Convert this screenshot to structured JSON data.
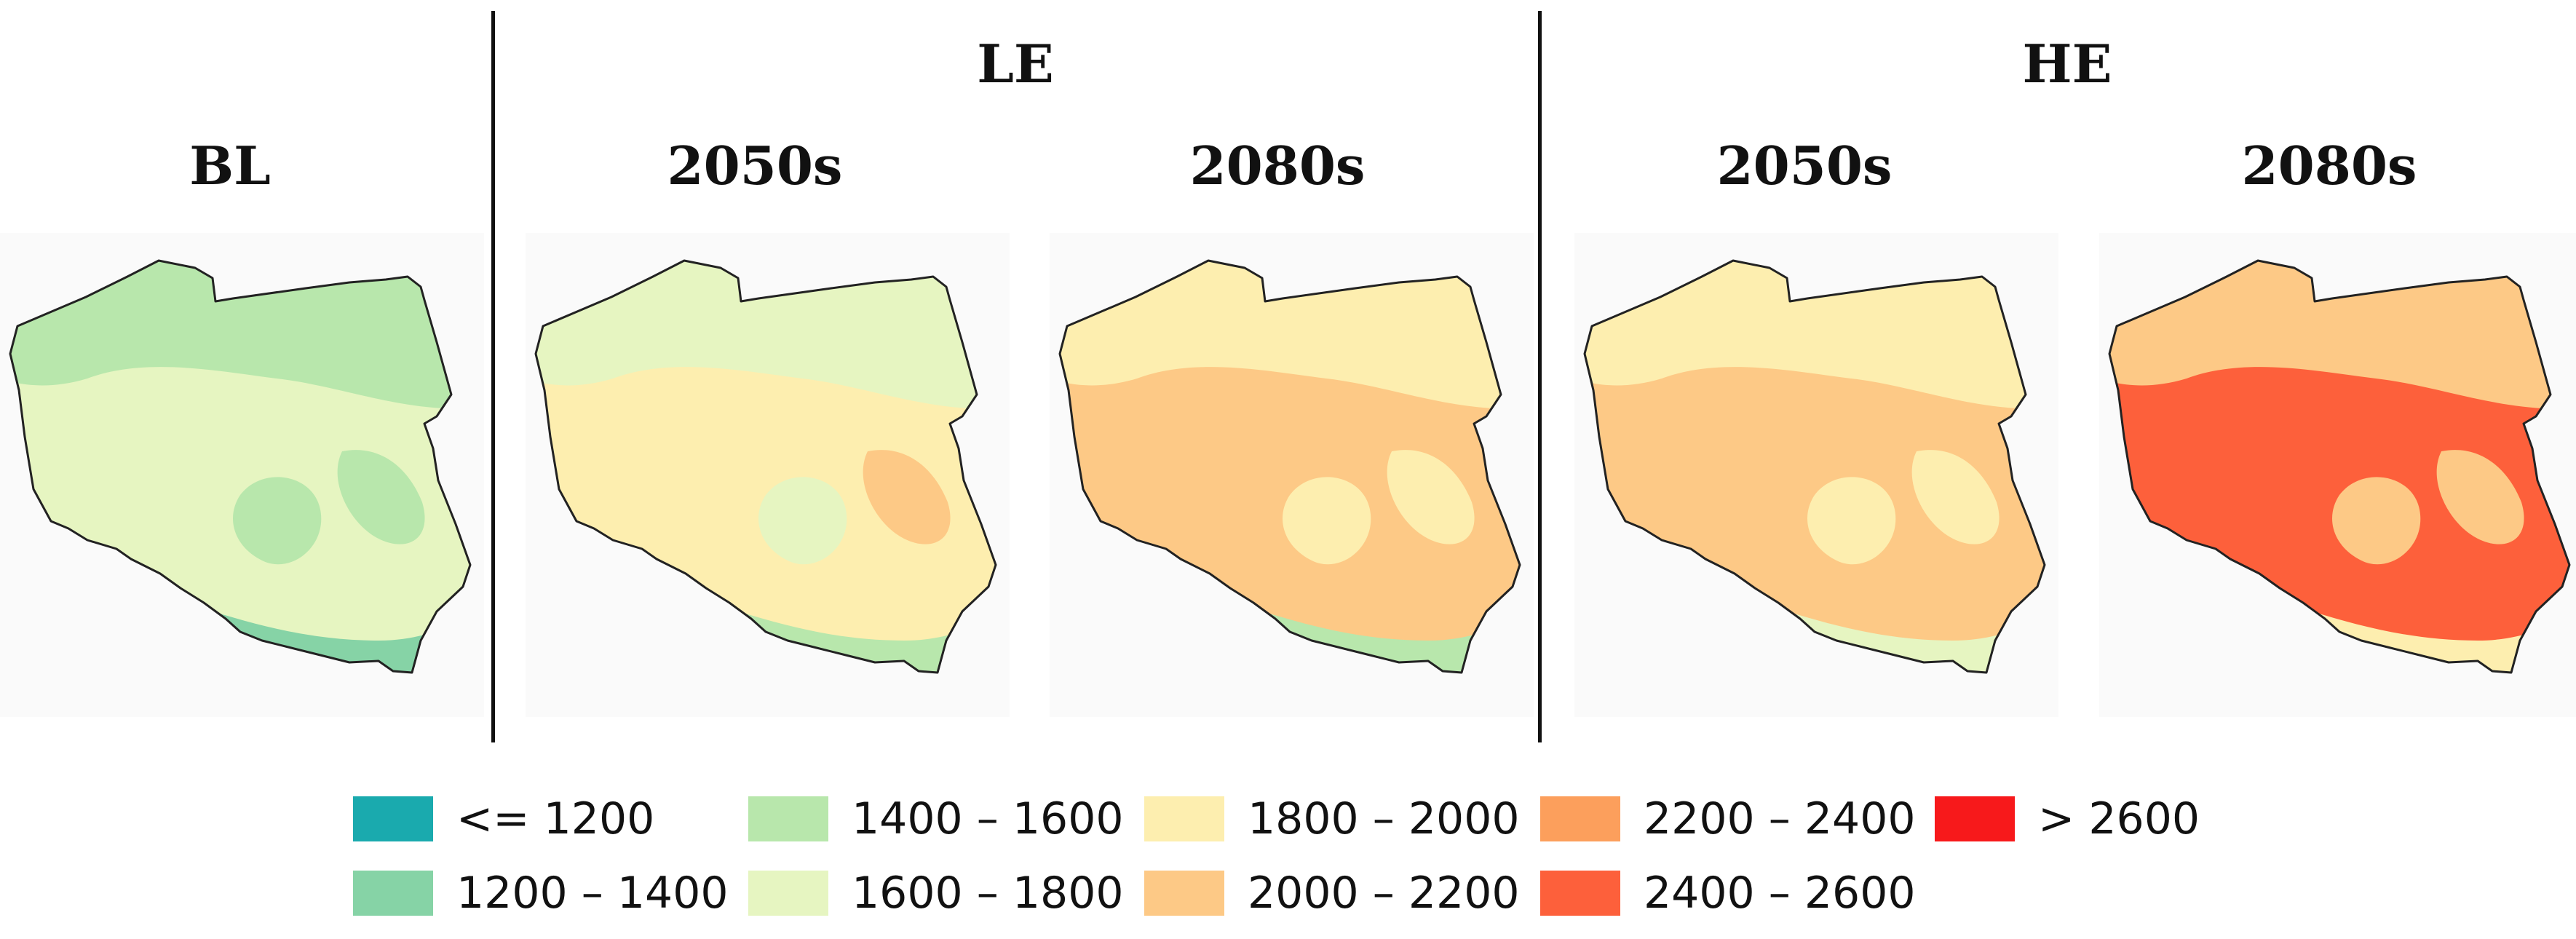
{
  "headers": {
    "bl": "BL",
    "le": "LE",
    "he": "HE",
    "le_2050": "2050s",
    "le_2080": "2080s",
    "he_2050": "2050s",
    "he_2080": "2080s"
  },
  "colors": {
    "c1": "#1aaaae",
    "c2": "#86d3a6",
    "c3": "#b8e7ac",
    "c4": "#e6f5c1",
    "c5": "#fdeeaf",
    "c6": "#fdc986",
    "c7": "#fc9f5c",
    "c8": "#fd603b",
    "c9": "#f7191b",
    "outline": "#222222"
  },
  "legend": [
    {
      "label": "<= 1200",
      "color": "#1aaaae"
    },
    {
      "label": "1200 – 1400",
      "color": "#86d3a6"
    },
    {
      "label": "1400 – 1600",
      "color": "#b8e7ac"
    },
    {
      "label": "1600 – 1800",
      "color": "#e6f5c1"
    },
    {
      "label": "1800 – 2000",
      "color": "#fdeeaf"
    },
    {
      "label": "2000 – 2200",
      "color": "#fdc986"
    },
    {
      "label": "2200 – 2400",
      "color": "#fc9f5c"
    },
    {
      "label": "2400 – 2600",
      "color": "#fd603b"
    },
    {
      "label": "> 2600",
      "color": "#f7191b"
    }
  ],
  "maps": [
    {
      "name": "BL",
      "base": "c4",
      "north": "c3",
      "regions": [
        "c3",
        "c3"
      ],
      "south": "c2",
      "mountains": "c1"
    },
    {
      "name": "LE 2050s",
      "base": "c5",
      "north": "c4",
      "regions": [
        "c4",
        "c6"
      ],
      "south": "c3",
      "mountains": "c1"
    },
    {
      "name": "LE 2080s",
      "base": "c6",
      "north": "c5",
      "regions": [
        "c5",
        "c5"
      ],
      "south": "c3",
      "mountains": "c1"
    },
    {
      "name": "HE 2050s",
      "base": "c6",
      "north": "c5",
      "regions": [
        "c5",
        "c5"
      ],
      "south": "c4",
      "mountains": "c1"
    },
    {
      "name": "HE 2080s",
      "base": "c8",
      "north": "c6",
      "regions": [
        "c6",
        "c6"
      ],
      "south": "c5",
      "mountains": "c6"
    }
  ]
}
